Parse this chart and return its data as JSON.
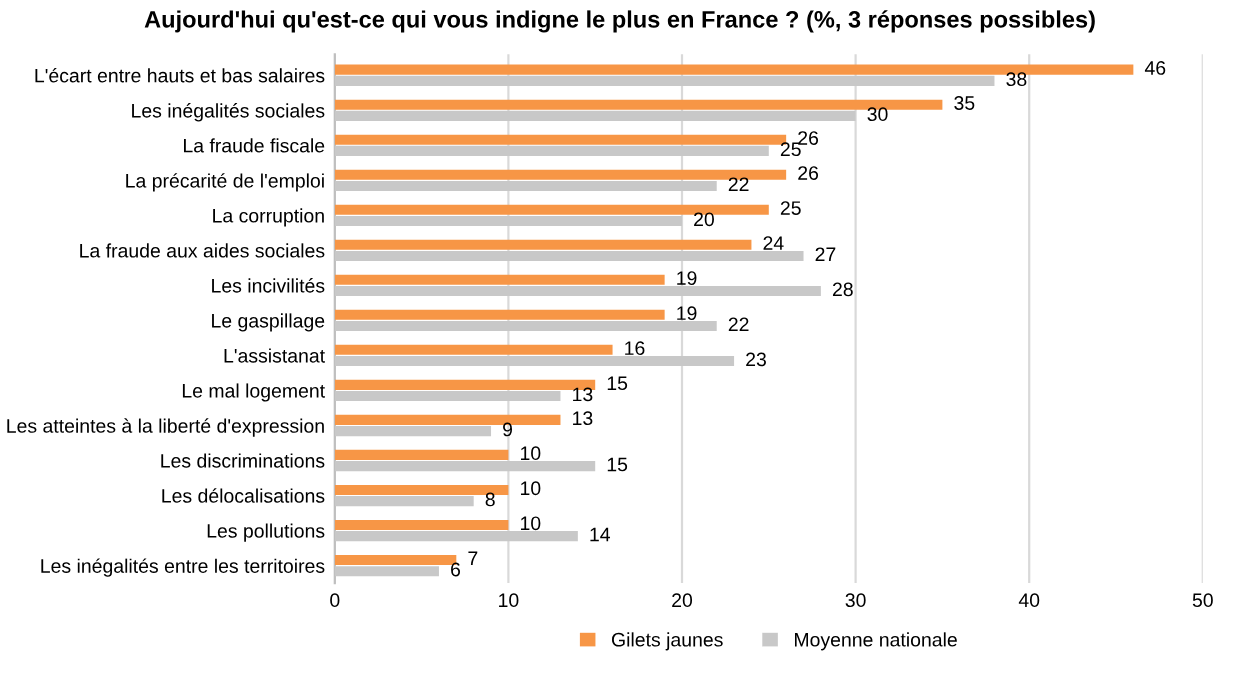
{
  "chart_data": {
    "type": "bar",
    "orientation": "horizontal",
    "title": "Aujourd'hui qu'est-ce qui vous indigne le plus en France ? (%, 3 réponses possibles)",
    "categories": [
      "L'écart entre hauts et bas salaires",
      "Les inégalités sociales",
      "La fraude fiscale",
      "La précarité de l'emploi",
      "La corruption",
      "La fraude aux aides sociales",
      "Les incivilités",
      "Le gaspillage",
      "L'assistanat",
      "Le mal logement",
      "Les atteintes à la liberté d'expression",
      "Les discriminations",
      "Les délocalisations",
      "Les pollutions",
      "Les inégalités entre les territoires"
    ],
    "series": [
      {
        "name": "Gilets jaunes",
        "color": "#f79646",
        "values": [
          46,
          35,
          26,
          26,
          25,
          24,
          19,
          19,
          16,
          15,
          13,
          10,
          10,
          10,
          7
        ]
      },
      {
        "name": "Moyenne nationale",
        "color": "#c8c8c8",
        "values": [
          38,
          30,
          25,
          22,
          20,
          27,
          28,
          22,
          23,
          13,
          9,
          15,
          8,
          14,
          6
        ]
      }
    ],
    "xlim": [
      0,
      50
    ],
    "xticks": [
      0,
      10,
      20,
      30,
      40,
      50
    ],
    "grid": "x",
    "legend": "bottom",
    "data_labels": true
  }
}
